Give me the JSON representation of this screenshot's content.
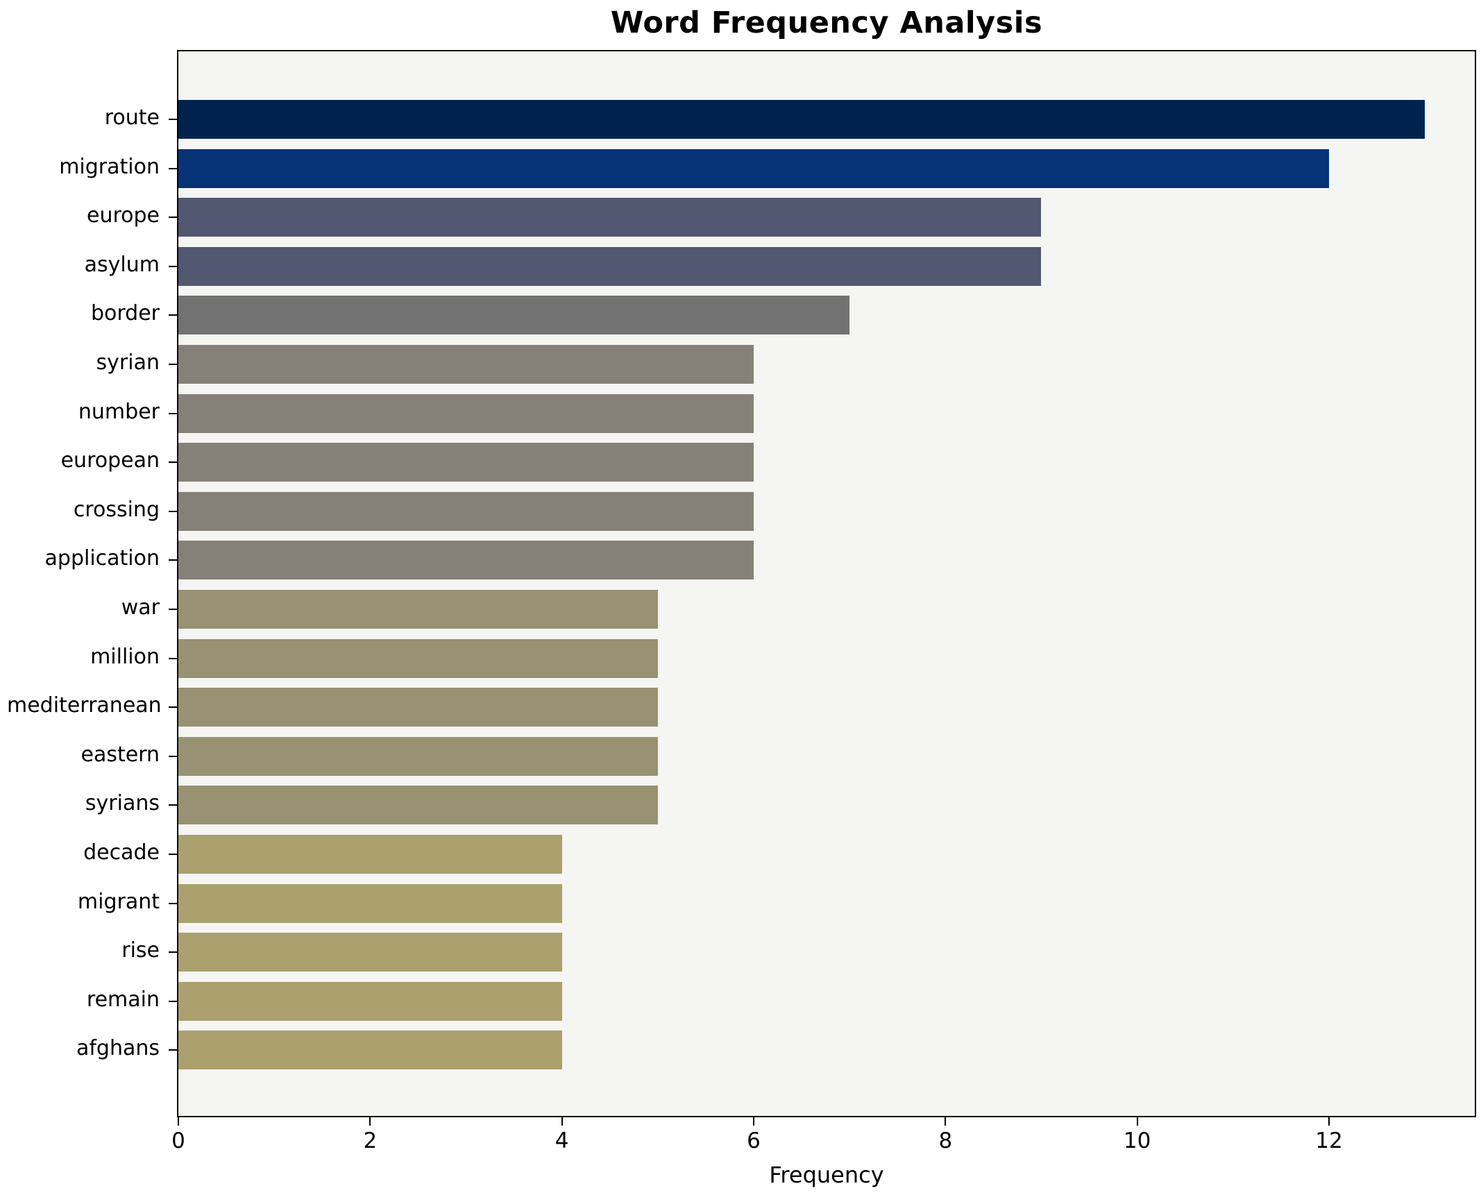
{
  "chart_data": {
    "type": "bar",
    "orientation": "horizontal",
    "title": "Word Frequency Analysis",
    "xlabel": "Frequency",
    "ylabel": "",
    "categories": [
      "route",
      "migration",
      "europe",
      "asylum",
      "border",
      "syrian",
      "number",
      "european",
      "crossing",
      "application",
      "war",
      "million",
      "mediterranean",
      "eastern",
      "syrians",
      "decade",
      "migrant",
      "rise",
      "remain",
      "afghans"
    ],
    "values": [
      13,
      12,
      9,
      9,
      7,
      6,
      6,
      6,
      6,
      6,
      5,
      5,
      5,
      5,
      5,
      4,
      4,
      4,
      4,
      4
    ],
    "bar_colors": [
      "#00234e",
      "#063377",
      "#525870",
      "#525870",
      "#727272",
      "#848178",
      "#848178",
      "#848178",
      "#848178",
      "#848178",
      "#989272",
      "#989272",
      "#989272",
      "#989272",
      "#989272",
      "#aba06e",
      "#aba06e",
      "#aba06e",
      "#aba06e",
      "#aba06e"
    ],
    "xticks": [
      0,
      2,
      4,
      6,
      8,
      10,
      12
    ],
    "xlim": [
      0,
      13.52
    ],
    "grid": false,
    "legend": false,
    "plot_background": "#f5f5f4",
    "figure_background": "#ffffff",
    "spine_color": "#000000",
    "bar_height_frac": 0.8
  }
}
